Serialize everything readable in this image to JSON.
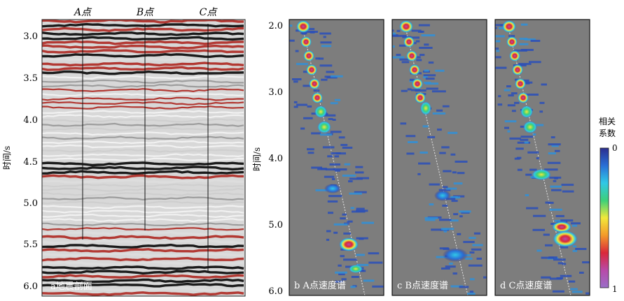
{
  "seismic": {
    "point_labels": [
      "A点",
      "B点",
      "C点"
    ],
    "y_ticks": [
      "3.0",
      "3.5",
      "4.0",
      "4.5",
      "5.0",
      "5.5",
      "6.0"
    ],
    "y_axis_label": "时间/s",
    "panel_label": "a地震剖面"
  },
  "spectra": {
    "y_ticks": [
      "2.0",
      "3.0",
      "4.0",
      "5.0",
      "6.0"
    ],
    "y_axis_label": "时间/s",
    "panel_labels": [
      "b A点速度谱",
      "c B点速度谱",
      "d C点速度谱"
    ]
  },
  "colorbar": {
    "title_line1": "相关",
    "title_line2": "系数",
    "min_label": "0",
    "max_label": "1",
    "colors": [
      "#2c2f8f",
      "#2a6fd6",
      "#30c8e6",
      "#3cd07a",
      "#f2e83a",
      "#f39a2a",
      "#d9283a",
      "#b84aa8",
      "#9a6fc8"
    ]
  },
  "colors": {
    "background_gray": "#7d7d7d",
    "seismic_red": "#b0302a"
  }
}
